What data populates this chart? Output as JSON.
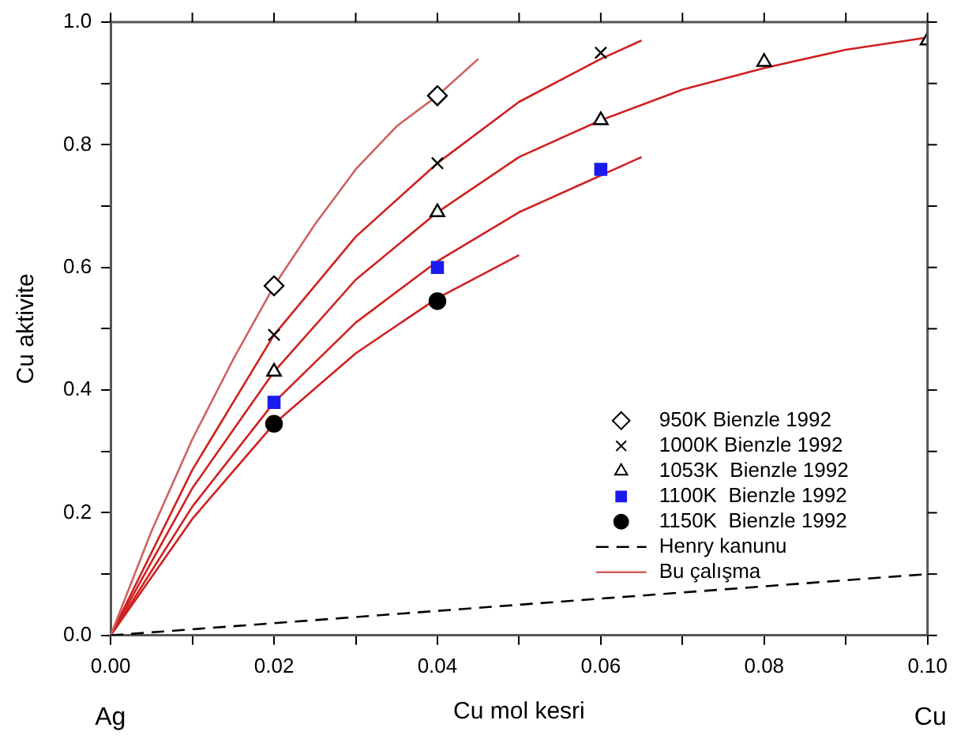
{
  "chart_data": {
    "type": "scatter",
    "xlabel": "Cu mol kesri",
    "ylabel": "Cu aktivite",
    "xlim": [
      0,
      0.1
    ],
    "ylim": [
      0,
      1
    ],
    "xticks": [
      {
        "value": 0,
        "label": "0.00"
      },
      {
        "value": 0.01,
        "label": null
      },
      {
        "value": 0.02,
        "label": "0.02"
      },
      {
        "value": 0.03,
        "label": null
      },
      {
        "value": 0.04,
        "label": "0.04"
      },
      {
        "value": 0.05,
        "label": null
      },
      {
        "value": 0.06,
        "label": "0.06"
      },
      {
        "value": 0.07,
        "label": null
      },
      {
        "value": 0.08,
        "label": "0.08"
      },
      {
        "value": 0.09,
        "label": null
      },
      {
        "value": 0.1,
        "label": "0.10"
      }
    ],
    "yticks": [
      {
        "value": 0,
        "label": "0.0"
      },
      {
        "value": 0.1,
        "label": null
      },
      {
        "value": 0.2,
        "label": "0.2"
      },
      {
        "value": 0.3,
        "label": null
      },
      {
        "value": 0.4,
        "label": "0.4"
      },
      {
        "value": 0.5,
        "label": null
      },
      {
        "value": 0.6,
        "label": "0.6"
      },
      {
        "value": 0.7,
        "label": null
      },
      {
        "value": 0.8,
        "label": "0.8"
      },
      {
        "value": 0.9,
        "label": null
      },
      {
        "value": 1,
        "label": "1.0"
      }
    ],
    "grid": false,
    "legend": "bottom right",
    "annotations": [
      "Ag",
      "Cu"
    ],
    "series": [
      {
        "name": "950K Bienzle 1992",
        "marker": "diamond",
        "color": "#000000",
        "x": [
          0.02,
          0.04
        ],
        "values": [
          0.57,
          0.88
        ]
      },
      {
        "name": "1000K Bienzle 1992",
        "marker": "cross",
        "color": "#000000",
        "x": [
          0.02,
          0.04,
          0.06
        ],
        "values": [
          0.49,
          0.77,
          0.95
        ]
      },
      {
        "name": "1053K  Bienzle 1992",
        "marker": "triangle",
        "color": "#000000",
        "x": [
          0.02,
          0.04,
          0.06,
          0.08,
          0.1
        ],
        "values": [
          0.43,
          0.69,
          0.84,
          0.935,
          0.97
        ]
      },
      {
        "name": "1100K  Bienzle 1992",
        "marker": "square",
        "color": "#1a1aee",
        "x": [
          0.02,
          0.04,
          0.06
        ],
        "values": [
          0.38,
          0.6,
          0.76
        ]
      },
      {
        "name": "1150K  Bienzle 1992",
        "marker": "circle",
        "color": "#000000",
        "x": [
          0.02,
          0.04
        ],
        "values": [
          0.345,
          0.545
        ]
      },
      {
        "name": "Henry kanunu",
        "type": "line",
        "line_style": "dashed",
        "marker": "none",
        "color": "#000000",
        "x": [
          0,
          0.1
        ],
        "values": [
          0,
          0.1
        ]
      },
      {
        "name": "Bu çalışma",
        "type": "line",
        "line_style": "solid",
        "marker": "none",
        "color": "#d06060",
        "x": [
          0,
          0.005,
          0.01,
          0.015,
          0.02,
          0.025,
          0.03,
          0.035,
          0.04,
          0.045
        ],
        "values": [
          0,
          0.17,
          0.32,
          0.45,
          0.57,
          0.67,
          0.76,
          0.83,
          0.88,
          0.94
        ]
      },
      {
        "type": "line",
        "line_style": "solid",
        "marker": "none",
        "color": "#d02020",
        "x": [
          0,
          0.01,
          0.02,
          0.03,
          0.04,
          0.05,
          0.06,
          0.065
        ],
        "values": [
          0,
          0.27,
          0.49,
          0.65,
          0.77,
          0.87,
          0.94,
          0.97
        ]
      },
      {
        "type": "line",
        "line_style": "solid",
        "marker": "none",
        "color": "#d02020",
        "x": [
          0,
          0.01,
          0.02,
          0.03,
          0.04,
          0.05,
          0.06,
          0.07,
          0.08,
          0.09,
          0.1
        ],
        "values": [
          0,
          0.24,
          0.43,
          0.58,
          0.69,
          0.78,
          0.84,
          0.89,
          0.925,
          0.955,
          0.975
        ]
      },
      {
        "type": "line",
        "line_style": "solid",
        "marker": "none",
        "color": "#d02020",
        "x": [
          0,
          0.01,
          0.02,
          0.03,
          0.04,
          0.05,
          0.06,
          0.065
        ],
        "values": [
          0,
          0.21,
          0.38,
          0.51,
          0.61,
          0.69,
          0.75,
          0.78
        ]
      },
      {
        "type": "line",
        "line_style": "solid",
        "marker": "none",
        "color": "#d02020",
        "x": [
          0,
          0.01,
          0.02,
          0.03,
          0.04,
          0.05
        ],
        "values": [
          0,
          0.19,
          0.345,
          0.46,
          0.55,
          0.62
        ]
      }
    ]
  }
}
